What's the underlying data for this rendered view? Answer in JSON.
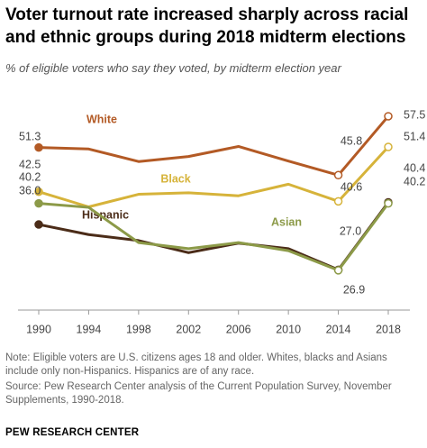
{
  "chart_data": {
    "type": "line",
    "title": "Voter turnout rate increased sharply across racial and ethnic groups during 2018 midterm elections",
    "subtitle": "% of eligible voters who say they voted, by midterm election year",
    "x": [
      1990,
      1994,
      1998,
      2002,
      2006,
      2010,
      2014,
      2018
    ],
    "xlim": [
      1990,
      2018
    ],
    "xticks": [
      1990,
      1994,
      1998,
      2002,
      2006,
      2010,
      2014,
      2018
    ],
    "ylim": [
      19,
      60
    ],
    "series": [
      {
        "name": "White",
        "color": "#b35a25",
        "values": [
          51.3,
          51.0,
          48.5,
          49.5,
          51.5,
          48.6,
          45.8,
          57.5
        ],
        "value_labels": [
          "51.3",
          null,
          null,
          null,
          null,
          null,
          "45.8",
          "57.5"
        ]
      },
      {
        "name": "Black",
        "color": "#d6b33a",
        "values": [
          42.5,
          39.5,
          42.0,
          42.3,
          41.7,
          44.0,
          40.6,
          51.4
        ],
        "value_labels": [
          "42.5",
          null,
          null,
          null,
          null,
          null,
          "40.6",
          "51.4"
        ]
      },
      {
        "name": "Hispanic",
        "color": "#4b2c18",
        "values": [
          36.0,
          34.0,
          32.8,
          30.4,
          32.3,
          31.2,
          27.0,
          40.4
        ],
        "value_labels": [
          "36.0",
          null,
          null,
          null,
          null,
          null,
          "27.0",
          "40.4"
        ]
      },
      {
        "name": "Asian",
        "color": "#8c9a48",
        "values": [
          40.2,
          39.4,
          32.4,
          31.2,
          32.4,
          30.8,
          26.9,
          40.2
        ],
        "value_labels": [
          "40.2",
          null,
          null,
          null,
          null,
          null,
          "26.9",
          "40.2"
        ]
      }
    ],
    "notes": [
      "Note: Eligible voters are U.S. citizens ages 18 and older. Whites, blacks and Asians include only non-Hispanics. Hispanics are of any race.",
      "Source: Pew Research Center analysis of the Current Population Survey, November Supplements, 1990-2018."
    ],
    "brand": "PEW RESEARCH CENTER"
  }
}
